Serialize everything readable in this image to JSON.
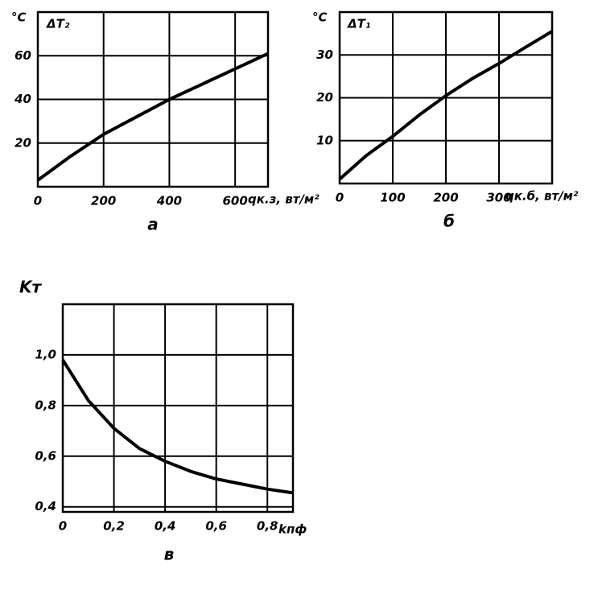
{
  "chart_data": [
    {
      "type": "line",
      "y_unit": "°C",
      "ylabel": "ΔT₂",
      "xlabel": "qк.з, вт/м²",
      "caption": "а",
      "x": [
        0,
        100,
        200,
        300,
        400,
        500,
        600,
        700
      ],
      "series": [
        {
          "color": "#000000",
          "values": [
            3,
            14,
            24,
            32,
            40,
            47,
            54,
            61
          ]
        }
      ],
      "xlim": [
        0,
        700
      ],
      "ylim": [
        0,
        80
      ],
      "xticks": [
        0,
        200,
        400,
        600
      ],
      "yticks": [
        20,
        40,
        60
      ],
      "grid": true
    },
    {
      "type": "line",
      "y_unit": "°C",
      "ylabel": "ΔT₁",
      "xlabel": "qк.б, вт/м²",
      "caption": "б",
      "x": [
        0,
        50,
        100,
        150,
        200,
        250,
        300,
        350,
        400
      ],
      "series": [
        {
          "color": "#000000",
          "values": [
            1,
            6.5,
            11,
            16,
            20.5,
            24.5,
            28,
            31.8,
            35.5
          ]
        }
      ],
      "xlim": [
        0,
        400
      ],
      "ylim": [
        0,
        40
      ],
      "xticks": [
        0,
        100,
        200,
        300
      ],
      "yticks": [
        10,
        20,
        30
      ],
      "grid": true
    },
    {
      "type": "line",
      "ylabel": "Kт",
      "xlabel": "kпф",
      "caption": "в",
      "x": [
        0,
        0.1,
        0.2,
        0.3,
        0.4,
        0.5,
        0.6,
        0.7,
        0.8,
        0.9
      ],
      "series": [
        {
          "color": "#000000",
          "values": [
            0.98,
            0.82,
            0.71,
            0.63,
            0.58,
            0.54,
            0.51,
            0.49,
            0.47,
            0.455
          ]
        }
      ],
      "xlim": [
        0,
        0.9
      ],
      "ylim": [
        0.38,
        1.2
      ],
      "xticks": [
        0,
        {
          "value": 0.2,
          "label": "0,2"
        },
        {
          "value": 0.4,
          "label": "0,4"
        },
        {
          "value": 0.6,
          "label": "0,6"
        },
        {
          "value": 0.8,
          "label": "0,8"
        }
      ],
      "yticks": [
        {
          "value": 0.4,
          "label": "0,4"
        },
        {
          "value": 0.6,
          "label": "0,6"
        },
        {
          "value": 0.8,
          "label": "0,8"
        },
        {
          "value": 1.0,
          "label": "1,0"
        }
      ],
      "grid": true
    }
  ]
}
